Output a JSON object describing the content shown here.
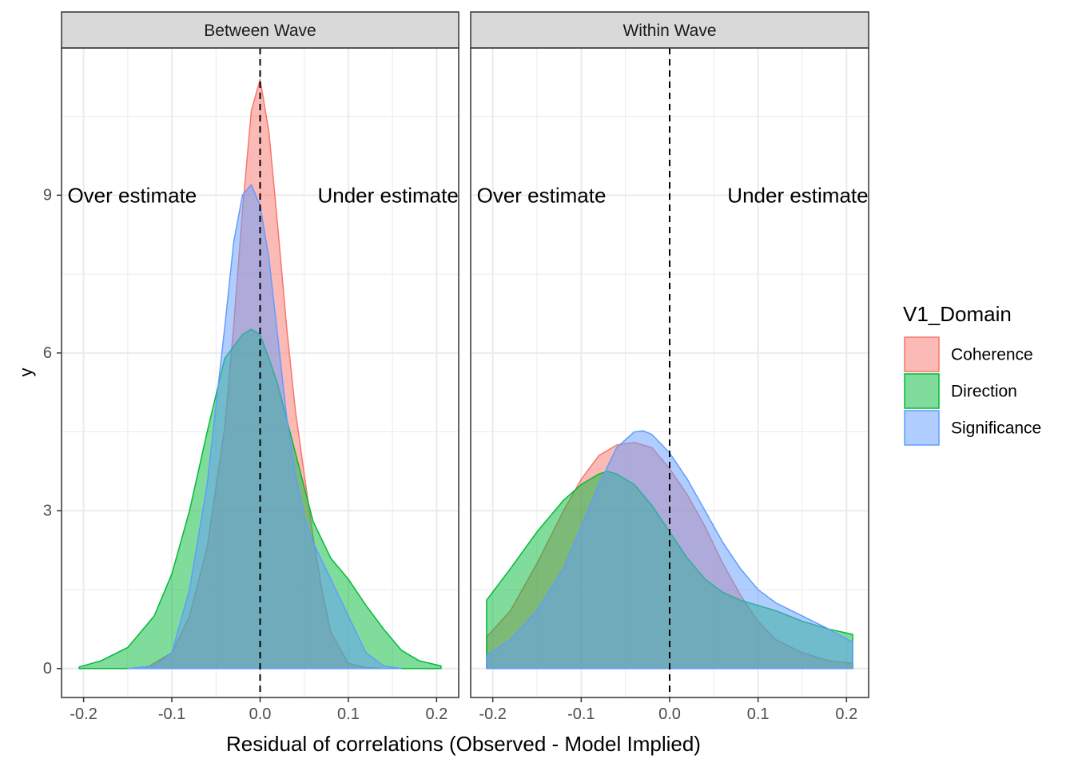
{
  "colors": {
    "Coherence": "#F8766D",
    "Direction": "#00BA38",
    "Significance": "#619CFF",
    "grid": "#EBEBEB",
    "strip": "#D9D9D9",
    "panel_border": "#333333"
  },
  "chart_data": {
    "type": "area",
    "subtype": "density",
    "xlabel": "Residual of correlations (Observed - Model Implied)",
    "ylabel": "y",
    "xlim": [
      -0.225,
      0.225
    ],
    "ylim": [
      -0.55,
      11.8
    ],
    "x_ticks": [
      -0.2,
      -0.1,
      0.0,
      0.1,
      0.2
    ],
    "x_tick_labels": [
      "-0.2",
      "-0.1",
      "0.0",
      "0.1",
      "0.2"
    ],
    "y_ticks": [
      0,
      3,
      6,
      9
    ],
    "y_tick_labels": [
      "0",
      "3",
      "6",
      "9"
    ],
    "grid": true,
    "reference_line": {
      "x": 0,
      "style": "dashed"
    },
    "fill_opacity": 0.5,
    "legend": {
      "title": "V1_Domain",
      "position": "right",
      "entries": [
        "Coherence",
        "Direction",
        "Significance"
      ]
    },
    "panels": [
      {
        "strip_label": "Between Wave",
        "annotations": [
          {
            "text": "Over estimate",
            "x": -0.145,
            "y": 9
          },
          {
            "text": "Under estimate",
            "x": 0.145,
            "y": 9
          }
        ],
        "series": [
          {
            "name": "Coherence",
            "x": [
              -0.13,
              -0.1,
              -0.08,
              -0.06,
              -0.04,
              -0.03,
              -0.02,
              -0.01,
              0.0,
              0.01,
              0.02,
              0.03,
              0.04,
              0.05,
              0.06,
              0.07,
              0.08,
              0.1,
              0.12,
              0.14
            ],
            "y": [
              0.0,
              0.3,
              1.0,
              2.3,
              4.6,
              6.5,
              8.7,
              10.6,
              11.2,
              10.2,
              8.4,
              6.5,
              4.9,
              3.7,
              2.5,
              1.5,
              0.7,
              0.1,
              0.02,
              0.0
            ]
          },
          {
            "name": "Direction",
            "x": [
              -0.205,
              -0.18,
              -0.15,
              -0.12,
              -0.1,
              -0.08,
              -0.06,
              -0.04,
              -0.02,
              -0.01,
              0.0,
              0.01,
              0.02,
              0.04,
              0.06,
              0.08,
              0.1,
              0.12,
              0.14,
              0.16,
              0.18,
              0.205
            ],
            "y": [
              0.03,
              0.15,
              0.4,
              1.0,
              1.8,
              3.0,
              4.5,
              5.9,
              6.35,
              6.45,
              6.35,
              5.9,
              5.4,
              4.1,
              2.8,
              2.1,
              1.7,
              1.2,
              0.75,
              0.35,
              0.15,
              0.05
            ]
          },
          {
            "name": "Significance",
            "x": [
              -0.15,
              -0.12,
              -0.1,
              -0.08,
              -0.06,
              -0.05,
              -0.04,
              -0.03,
              -0.02,
              -0.01,
              0.0,
              0.01,
              0.02,
              0.03,
              0.04,
              0.05,
              0.06,
              0.08,
              0.1,
              0.12,
              0.14,
              0.16
            ],
            "y": [
              0.0,
              0.05,
              0.3,
              1.5,
              3.5,
              5.0,
              6.5,
              8.1,
              9.0,
              9.2,
              8.8,
              7.8,
              6.3,
              4.8,
              3.7,
              2.9,
              2.4,
              1.7,
              1.0,
              0.3,
              0.05,
              0.0
            ]
          }
        ]
      },
      {
        "strip_label": "Within Wave",
        "annotations": [
          {
            "text": "Over estimate",
            "x": -0.145,
            "y": 9
          },
          {
            "text": "Under estimate",
            "x": 0.145,
            "y": 9
          }
        ],
        "series": [
          {
            "name": "Coherence",
            "x": [
              -0.207,
              -0.18,
              -0.15,
              -0.12,
              -0.1,
              -0.08,
              -0.06,
              -0.04,
              -0.02,
              0.0,
              0.02,
              0.04,
              0.06,
              0.08,
              0.1,
              0.12,
              0.15,
              0.18,
              0.207
            ],
            "y": [
              0.6,
              1.1,
              2.0,
              3.0,
              3.6,
              4.05,
              4.25,
              4.3,
              4.2,
              3.8,
              3.3,
              2.7,
              2.0,
              1.4,
              0.9,
              0.55,
              0.3,
              0.15,
              0.1
            ]
          },
          {
            "name": "Direction",
            "x": [
              -0.207,
              -0.18,
              -0.15,
              -0.12,
              -0.1,
              -0.08,
              -0.07,
              -0.06,
              -0.04,
              -0.02,
              0.0,
              0.02,
              0.04,
              0.06,
              0.08,
              0.1,
              0.12,
              0.15,
              0.18,
              0.207
            ],
            "y": [
              1.3,
              1.9,
              2.6,
              3.2,
              3.5,
              3.7,
              3.75,
              3.7,
              3.5,
              3.1,
              2.6,
              2.1,
              1.7,
              1.45,
              1.3,
              1.2,
              1.1,
              0.9,
              0.75,
              0.65
            ]
          },
          {
            "name": "Significance",
            "x": [
              -0.207,
              -0.18,
              -0.15,
              -0.12,
              -0.1,
              -0.08,
              -0.06,
              -0.04,
              -0.03,
              -0.02,
              0.0,
              0.02,
              0.04,
              0.06,
              0.08,
              0.1,
              0.12,
              0.15,
              0.18,
              0.207
            ],
            "y": [
              0.25,
              0.55,
              1.1,
              1.9,
              2.7,
              3.5,
              4.2,
              4.5,
              4.52,
              4.45,
              4.1,
              3.6,
              3.0,
              2.4,
              1.9,
              1.5,
              1.25,
              1.0,
              0.75,
              0.5
            ]
          }
        ]
      }
    ]
  }
}
